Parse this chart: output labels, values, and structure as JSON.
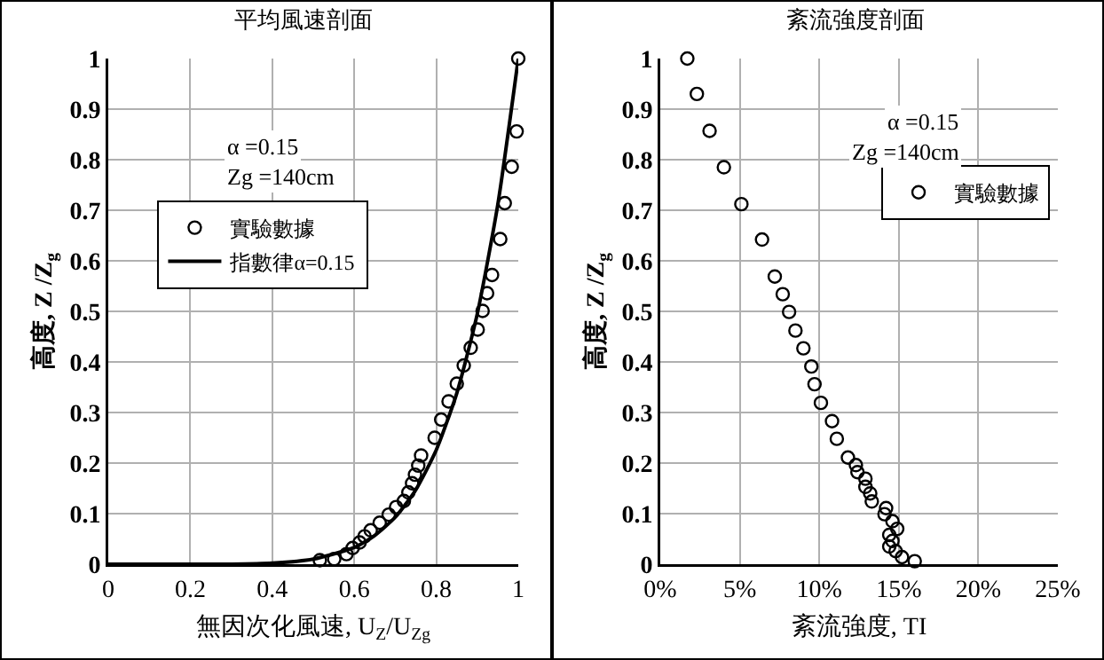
{
  "chart_data": [
    {
      "type": "scatter",
      "title": "平均風速剖面",
      "xlabel": "無因次化風速, U$_{Z}$/U$_{Zg}$",
      "ylabel": "高度, Z /Z$_{g}$",
      "xlim": [
        0,
        1
      ],
      "xticks": [
        0,
        0.2,
        0.4,
        0.6,
        0.8,
        1
      ],
      "ylim": [
        0,
        1
      ],
      "yticks": [
        0,
        0.1,
        0.2,
        0.3,
        0.4,
        0.5,
        0.6,
        0.7,
        0.8,
        0.9,
        1
      ],
      "grid": true,
      "legend": "top left",
      "annotations": [
        "α =0.15",
        "Zg =140cm"
      ],
      "series": [
        {
          "name": "實驗數據",
          "marker": "circle",
          "color": "#000000",
          "x": [
            1.0,
            0.996,
            0.984,
            0.967,
            0.956,
            0.936,
            0.924,
            0.913,
            0.901,
            0.884,
            0.867,
            0.85,
            0.83,
            0.812,
            0.796,
            0.763,
            0.756,
            0.748,
            0.741,
            0.732,
            0.721,
            0.702,
            0.684,
            0.662,
            0.64,
            0.625,
            0.613,
            0.596,
            0.581,
            0.551,
            0.516
          ],
          "values": [
            1.0,
            0.856,
            0.786,
            0.714,
            0.643,
            0.572,
            0.536,
            0.501,
            0.464,
            0.428,
            0.393,
            0.357,
            0.322,
            0.286,
            0.25,
            0.215,
            0.195,
            0.177,
            0.16,
            0.142,
            0.125,
            0.113,
            0.098,
            0.082,
            0.067,
            0.055,
            0.043,
            0.032,
            0.02,
            0.01,
            0.008
          ]
        },
        {
          "name": "指數律α=0.15",
          "type": "line",
          "line_style": "solid",
          "color": "#000000",
          "x": [
            0,
            0.3,
            0.4,
            0.5,
            0.6,
            0.65,
            0.7,
            0.75,
            0.8,
            0.85,
            0.9,
            0.95,
            1
          ],
          "values": [
            0,
            0,
            0.002,
            0.01,
            0.033,
            0.057,
            0.093,
            0.147,
            0.226,
            0.338,
            0.495,
            0.711,
            1
          ]
        }
      ]
    },
    {
      "type": "scatter",
      "title": "紊流強度剖面",
      "xlabel": "紊流強度, TI",
      "ylabel": "高度, Z /Z$_{g}$",
      "xlim": [
        0,
        25
      ],
      "xticks": [
        {
          "value": 0,
          "label": "0%"
        },
        {
          "value": 5,
          "label": "5%"
        },
        {
          "value": 10,
          "label": "10%"
        },
        {
          "value": 15,
          "label": "15%"
        },
        {
          "value": 20,
          "label": "20%"
        },
        {
          "value": 25,
          "label": "25%"
        }
      ],
      "ylim": [
        0,
        1
      ],
      "yticks": [
        0,
        0.1,
        0.2,
        0.3,
        0.4,
        0.5,
        0.6,
        0.7,
        0.8,
        0.9,
        1
      ],
      "grid": true,
      "legend": "top right",
      "annotations": [
        "α =0.15",
        "Zg =140cm"
      ],
      "series": [
        {
          "name": "實驗數據",
          "marker": "circle",
          "color": "#000000",
          "x": [
            1.7,
            2.3,
            3.1,
            4.0,
            5.1,
            6.4,
            7.2,
            7.7,
            8.1,
            8.5,
            9.0,
            9.5,
            9.7,
            10.1,
            10.8,
            11.1,
            11.8,
            12.3,
            12.4,
            12.9,
            12.9,
            13.2,
            13.3,
            14.2,
            14.1,
            14.6,
            14.9,
            14.4,
            14.6,
            14.4,
            14.8,
            15.2,
            16.0
          ],
          "values": [
            1.0,
            0.93,
            0.857,
            0.785,
            0.712,
            0.642,
            0.569,
            0.534,
            0.499,
            0.462,
            0.427,
            0.391,
            0.356,
            0.319,
            0.283,
            0.248,
            0.211,
            0.196,
            0.182,
            0.169,
            0.153,
            0.14,
            0.124,
            0.111,
            0.099,
            0.085,
            0.07,
            0.058,
            0.046,
            0.035,
            0.026,
            0.014,
            0.006
          ]
        }
      ]
    }
  ]
}
